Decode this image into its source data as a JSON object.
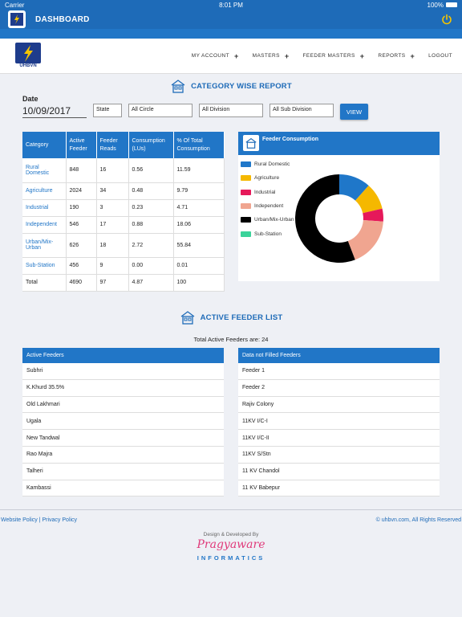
{
  "status_bar": {
    "carrier": "Carrier",
    "time": "8:01 PM",
    "battery": "100%"
  },
  "appbar": {
    "title": "DASHBOARD"
  },
  "logo": {
    "text": "UHBVN"
  },
  "nav": {
    "items": [
      {
        "label": "MY ACCOUNT",
        "has_plus": true
      },
      {
        "label": "MASTERS",
        "has_plus": true
      },
      {
        "label": "FEEDER MASTERS",
        "has_plus": true
      },
      {
        "label": "REPORTS",
        "has_plus": true
      },
      {
        "label": "LOGOUT",
        "has_plus": false
      }
    ]
  },
  "report": {
    "heading": "CATEGORY WISE REPORT",
    "date_label": "Date",
    "date_value": "10/09/2017",
    "filters": {
      "state": "State",
      "circle": "All Circle",
      "division": "All Division",
      "sub_division": "All Sub Division"
    },
    "view_label": "VIEW"
  },
  "category_table": {
    "headers": [
      "Category",
      "Active Feeder",
      "Feeder Reads",
      "Consumption (LUs)",
      "% Of Total Consumption"
    ],
    "rows": [
      [
        "Rural Domestic",
        "848",
        "16",
        "0.56",
        "11.59"
      ],
      [
        "Agriculture",
        "2024",
        "34",
        "0.48",
        "9.79"
      ],
      [
        "Industrial",
        "190",
        "3",
        "0.23",
        "4.71"
      ],
      [
        "Independent",
        "546",
        "17",
        "0.88",
        "18.06"
      ],
      [
        "Urban/Mix-Urban",
        "626",
        "18",
        "2.72",
        "55.84"
      ],
      [
        "Sub-Station",
        "456",
        "9",
        "0.00",
        "0.01"
      ],
      [
        "Total",
        "4690",
        "97",
        "4.87",
        "100"
      ]
    ]
  },
  "chart_data": {
    "type": "pie",
    "title": "Feeder Consumption",
    "categories": [
      "Rural Domestic",
      "Agriculture",
      "Industrial",
      "Independent",
      "Urban/Mix-Urban",
      "Sub-Station"
    ],
    "values": [
      11.59,
      9.79,
      4.71,
      18.06,
      55.84,
      0.01
    ],
    "colors": [
      "#1f77c9",
      "#f5b800",
      "#e6195a",
      "#f0a590",
      "#000000",
      "#3bd39a"
    ],
    "legend_position": "left",
    "donut": true
  },
  "active_list": {
    "heading": "ACTIVE FEEDER LIST",
    "total_text": "Total Active Feeders are: 24",
    "active_header": "Active Feeders",
    "active_items": [
      "Subhri",
      "K.Khurd 35.5%",
      "Old Lakhmari",
      "Ugala",
      "New Tandwal",
      "Rao Majra",
      "Talheri",
      "Kambassi"
    ],
    "not_filled_header": "Data not Filled Feeders",
    "not_filled_items": [
      "Feeder 1",
      "Feeder 2",
      "Rajiv Colony",
      "11KV I/C-I",
      "11KV I/C-II",
      "11KV S/Stn",
      "11 KV Chandol",
      "11 KV Babepur"
    ]
  },
  "footer": {
    "left": "Website Policy | Privacy Policy",
    "right": "© uhbvn.com, All Rights Reserved",
    "design_by": "Design & Developed By",
    "brand": "Pragyaware",
    "brand_sub": "INFORMATICS"
  }
}
